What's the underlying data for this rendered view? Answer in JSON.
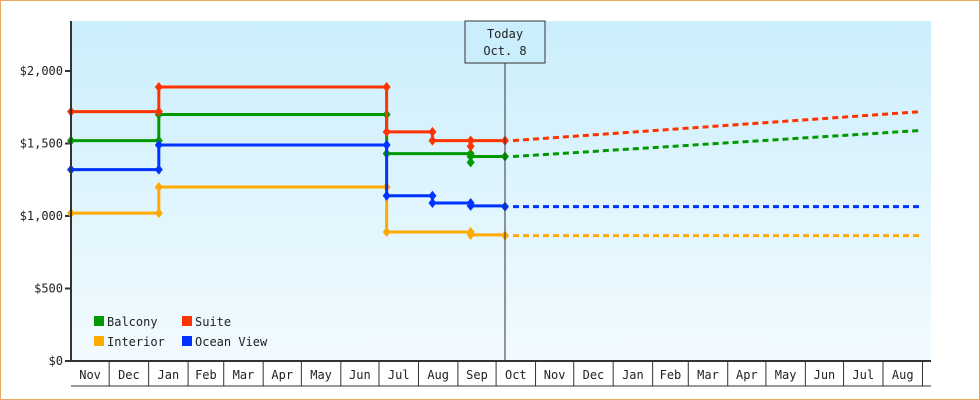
{
  "chart_data": {
    "type": "line",
    "step": true,
    "ylim": [
      0,
      2300
    ],
    "yticks": [
      {
        "value": 0,
        "label": "$0"
      },
      {
        "value": 500,
        "label": "$500"
      },
      {
        "value": 1000,
        "label": "$1,000"
      },
      {
        "value": 1500,
        "label": "$1,500"
      },
      {
        "value": 2000,
        "label": "$2,000"
      }
    ],
    "xtick_labels": [
      "Nov",
      "Dec",
      "Jan",
      "Feb",
      "Mar",
      "Apr",
      "May",
      "Jun",
      "Jul",
      "Aug",
      "Sep",
      "Oct",
      "Nov",
      "Dec",
      "Jan",
      "Feb",
      "Mar",
      "Apr",
      "May",
      "Jun",
      "Jul",
      "Aug"
    ],
    "today": {
      "line1": "Today",
      "line2": "Oct. 8",
      "date": "Oct 8"
    },
    "legend_position": "bottom-left",
    "series": [
      {
        "name": "Balcony",
        "color": "#009900",
        "history": [
          [
            "Nov 1",
            1520
          ],
          [
            "Jan 9",
            1520
          ],
          [
            "Jan 9",
            1700
          ],
          [
            "Jul 7",
            1700
          ],
          [
            "Jul 7",
            1430
          ],
          [
            "Sep 11",
            1430
          ],
          [
            "Sep 11",
            1370
          ],
          [
            "Sep 11",
            1410
          ],
          [
            "Oct 8",
            1410
          ]
        ],
        "forecast": [
          [
            "Oct 8",
            1410
          ],
          [
            "Aug 31",
            1590
          ]
        ]
      },
      {
        "name": "Suite",
        "color": "#ff3300",
        "history": [
          [
            "Nov 1",
            1720
          ],
          [
            "Jan 9",
            1720
          ],
          [
            "Jan 9",
            1890
          ],
          [
            "Jul 7",
            1890
          ],
          [
            "Jul 7",
            1580
          ],
          [
            "Aug 12",
            1580
          ],
          [
            "Aug 12",
            1520
          ],
          [
            "Sep 11",
            1520
          ],
          [
            "Sep 11",
            1480
          ],
          [
            "Sep 11",
            1520
          ],
          [
            "Oct 8",
            1520
          ]
        ],
        "forecast": [
          [
            "Oct 8",
            1520
          ],
          [
            "Aug 31",
            1720
          ]
        ]
      },
      {
        "name": "Interior",
        "color": "#ffaa00",
        "history": [
          [
            "Nov 1",
            1020
          ],
          [
            "Jan 9",
            1020
          ],
          [
            "Jan 9",
            1200
          ],
          [
            "Jul 7",
            1200
          ],
          [
            "Jul 7",
            890
          ],
          [
            "Sep 11",
            890
          ],
          [
            "Sep 11",
            870
          ],
          [
            "Oct 8",
            865
          ]
        ],
        "forecast": [
          [
            "Oct 8",
            865
          ],
          [
            "Aug 31",
            865
          ]
        ]
      },
      {
        "name": "Ocean View",
        "color": "#0033ff",
        "history": [
          [
            "Nov 1",
            1320
          ],
          [
            "Jan 9",
            1320
          ],
          [
            "Jan 9",
            1490
          ],
          [
            "Jul 7",
            1490
          ],
          [
            "Jul 7",
            1140
          ],
          [
            "Aug 12",
            1140
          ],
          [
            "Aug 12",
            1090
          ],
          [
            "Sep 11",
            1090
          ],
          [
            "Sep 11",
            1070
          ],
          [
            "Oct 8",
            1065
          ]
        ],
        "forecast": [
          [
            "Oct 8",
            1065
          ],
          [
            "Aug 31",
            1065
          ]
        ]
      }
    ]
  }
}
